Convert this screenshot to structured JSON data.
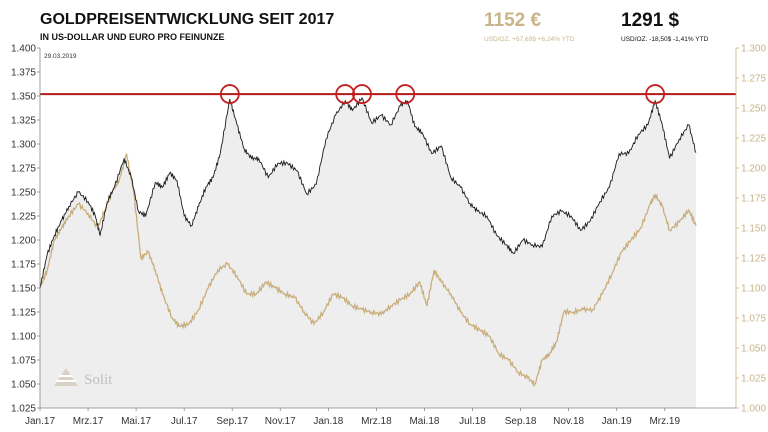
{
  "header": {
    "title": "GOLDPREISENTWICKLUNG SEIT 2017",
    "subtitle": "IN US-DOLLAR UND EURO PRO FEINUNZE",
    "date": "29.03.2019",
    "eur_price": "1152 €",
    "eur_detail": "USD/OZ. +67,69$ +6,24% YTD",
    "usd_price": "1291 $",
    "usd_detail": "USD/OZ. -18,50$ -1,41% YTD"
  },
  "logo": {
    "text": "Solit"
  },
  "colors": {
    "usd_line": "#1a1a1a",
    "usd_area": "#eeeeee",
    "eur_line": "#c9ae7c",
    "resistance": "#b31a1a",
    "circle": "#c22020",
    "eur_axis_text": "#c9b48a"
  },
  "chart_data": {
    "type": "line",
    "x_unit": "months since Jan 2017",
    "xlim": [
      0,
      27.8
    ],
    "x_ticks": [
      {
        "label": "Jan.17",
        "x": 0
      },
      {
        "label": "Mrz.17",
        "x": 2
      },
      {
        "label": "Mai.17",
        "x": 4
      },
      {
        "label": "Jul.17",
        "x": 6
      },
      {
        "label": "Sep.17",
        "x": 8
      },
      {
        "label": "Nov.17",
        "x": 10
      },
      {
        "label": "Jan.18",
        "x": 12
      },
      {
        "label": "Mrz.18",
        "x": 14
      },
      {
        "label": "Mai.18",
        "x": 16
      },
      {
        "label": "Jul.18",
        "x": 18
      },
      {
        "label": "Sep.18",
        "x": 20
      },
      {
        "label": "Nov.18",
        "x": 22
      },
      {
        "label": "Jan.19",
        "x": 24
      },
      {
        "label": "Mrz.19",
        "x": 26
      }
    ],
    "y_left": {
      "lim": [
        1025,
        1400
      ],
      "ticks": [
        "1.025",
        "1.050",
        "1.075",
        "1.100",
        "1.125",
        "1.150",
        "1.175",
        "1.200",
        "1.225",
        "1.250",
        "1.275",
        "1.300",
        "1.325",
        "1.350",
        "1.375",
        "1.400"
      ]
    },
    "y_right": {
      "lim": [
        1000,
        1300
      ],
      "ticks": [
        "1.000",
        "1.025",
        "1.050",
        "1.075",
        "1.100",
        "1.125",
        "1.150",
        "1.175",
        "1.200",
        "1.225",
        "1.250",
        "1.275",
        "1.300"
      ]
    },
    "resistance_level": 1352,
    "resistance_touches": [
      {
        "x": 7.9,
        "y": 1352
      },
      {
        "x": 12.7,
        "y": 1352
      },
      {
        "x": 13.4,
        "y": 1352
      },
      {
        "x": 15.2,
        "y": 1352
      },
      {
        "x": 25.6,
        "y": 1352
      }
    ],
    "series": [
      {
        "name": "Gold USD",
        "axis": "left",
        "style": "area",
        "points": [
          [
            0,
            1150
          ],
          [
            0.3,
            1185
          ],
          [
            0.6,
            1205
          ],
          [
            0.9,
            1220
          ],
          [
            1.2,
            1235
          ],
          [
            1.6,
            1250
          ],
          [
            2.0,
            1240
          ],
          [
            2.3,
            1225
          ],
          [
            2.5,
            1205
          ],
          [
            2.8,
            1240
          ],
          [
            3.1,
            1255
          ],
          [
            3.5,
            1285
          ],
          [
            3.8,
            1265
          ],
          [
            4.1,
            1230
          ],
          [
            4.4,
            1225
          ],
          [
            4.8,
            1260
          ],
          [
            5.1,
            1255
          ],
          [
            5.4,
            1270
          ],
          [
            5.7,
            1262
          ],
          [
            6.0,
            1225
          ],
          [
            6.3,
            1215
          ],
          [
            6.6,
            1235
          ],
          [
            6.9,
            1255
          ],
          [
            7.2,
            1265
          ],
          [
            7.5,
            1290
          ],
          [
            7.9,
            1347
          ],
          [
            8.2,
            1320
          ],
          [
            8.5,
            1295
          ],
          [
            8.8,
            1285
          ],
          [
            9.1,
            1285
          ],
          [
            9.5,
            1265
          ],
          [
            9.9,
            1280
          ],
          [
            10.3,
            1280
          ],
          [
            10.7,
            1272
          ],
          [
            11.1,
            1248
          ],
          [
            11.5,
            1258
          ],
          [
            11.9,
            1305
          ],
          [
            12.3,
            1330
          ],
          [
            12.7,
            1345
          ],
          [
            13.0,
            1335
          ],
          [
            13.4,
            1348
          ],
          [
            13.8,
            1322
          ],
          [
            14.2,
            1330
          ],
          [
            14.6,
            1320
          ],
          [
            15.0,
            1340
          ],
          [
            15.3,
            1345
          ],
          [
            15.6,
            1318
          ],
          [
            15.9,
            1312
          ],
          [
            16.3,
            1290
          ],
          [
            16.7,
            1298
          ],
          [
            17.1,
            1265
          ],
          [
            17.5,
            1255
          ],
          [
            17.9,
            1238
          ],
          [
            18.2,
            1230
          ],
          [
            18.6,
            1225
          ],
          [
            19.0,
            1205
          ],
          [
            19.4,
            1195
          ],
          [
            19.7,
            1186
          ],
          [
            20.1,
            1200
          ],
          [
            20.5,
            1195
          ],
          [
            20.9,
            1193
          ],
          [
            21.3,
            1225
          ],
          [
            21.7,
            1230
          ],
          [
            22.1,
            1225
          ],
          [
            22.5,
            1210
          ],
          [
            22.9,
            1220
          ],
          [
            23.3,
            1240
          ],
          [
            23.7,
            1255
          ],
          [
            24.1,
            1290
          ],
          [
            24.5,
            1290
          ],
          [
            24.9,
            1310
          ],
          [
            25.3,
            1320
          ],
          [
            25.6,
            1345
          ],
          [
            25.9,
            1320
          ],
          [
            26.2,
            1285
          ],
          [
            26.6,
            1305
          ],
          [
            27.0,
            1320
          ],
          [
            27.3,
            1291
          ]
        ]
      },
      {
        "name": "Gold EUR",
        "axis": "right",
        "style": "line",
        "points": [
          [
            0,
            1100
          ],
          [
            0.3,
            1115
          ],
          [
            0.6,
            1140
          ],
          [
            0.9,
            1150
          ],
          [
            1.2,
            1160
          ],
          [
            1.6,
            1170
          ],
          [
            2.0,
            1162
          ],
          [
            2.4,
            1150
          ],
          [
            2.7,
            1165
          ],
          [
            3.0,
            1180
          ],
          [
            3.3,
            1190
          ],
          [
            3.6,
            1212
          ],
          [
            3.9,
            1180
          ],
          [
            4.2,
            1125
          ],
          [
            4.5,
            1130
          ],
          [
            4.8,
            1115
          ],
          [
            5.1,
            1095
          ],
          [
            5.5,
            1075
          ],
          [
            5.8,
            1068
          ],
          [
            6.2,
            1070
          ],
          [
            6.6,
            1082
          ],
          [
            7.0,
            1100
          ],
          [
            7.4,
            1115
          ],
          [
            7.8,
            1120
          ],
          [
            8.2,
            1110
          ],
          [
            8.6,
            1095
          ],
          [
            9.0,
            1095
          ],
          [
            9.4,
            1105
          ],
          [
            9.8,
            1100
          ],
          [
            10.2,
            1095
          ],
          [
            10.6,
            1092
          ],
          [
            11.0,
            1080
          ],
          [
            11.4,
            1070
          ],
          [
            11.8,
            1080
          ],
          [
            12.2,
            1095
          ],
          [
            12.6,
            1092
          ],
          [
            13.0,
            1085
          ],
          [
            13.4,
            1082
          ],
          [
            13.8,
            1080
          ],
          [
            14.2,
            1078
          ],
          [
            14.6,
            1085
          ],
          [
            15.0,
            1090
          ],
          [
            15.4,
            1095
          ],
          [
            15.8,
            1105
          ],
          [
            16.1,
            1085
          ],
          [
            16.4,
            1115
          ],
          [
            16.7,
            1105
          ],
          [
            17.1,
            1095
          ],
          [
            17.5,
            1080
          ],
          [
            17.9,
            1070
          ],
          [
            18.3,
            1065
          ],
          [
            18.7,
            1060
          ],
          [
            19.1,
            1045
          ],
          [
            19.5,
            1040
          ],
          [
            19.9,
            1030
          ],
          [
            20.3,
            1025
          ],
          [
            20.6,
            1020
          ],
          [
            20.9,
            1040
          ],
          [
            21.2,
            1045
          ],
          [
            21.5,
            1055
          ],
          [
            21.8,
            1080
          ],
          [
            22.2,
            1080
          ],
          [
            22.6,
            1082
          ],
          [
            23.0,
            1082
          ],
          [
            23.4,
            1095
          ],
          [
            23.8,
            1112
          ],
          [
            24.2,
            1130
          ],
          [
            24.6,
            1140
          ],
          [
            25.0,
            1150
          ],
          [
            25.4,
            1170
          ],
          [
            25.6,
            1178
          ],
          [
            25.9,
            1168
          ],
          [
            26.2,
            1148
          ],
          [
            26.6,
            1155
          ],
          [
            27.0,
            1165
          ],
          [
            27.3,
            1152
          ]
        ]
      }
    ]
  }
}
